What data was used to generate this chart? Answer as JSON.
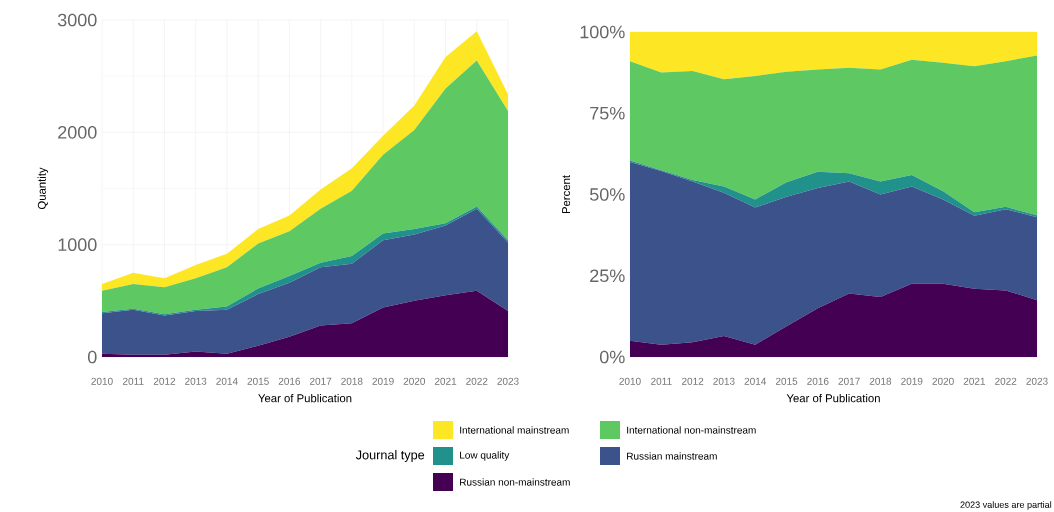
{
  "chart_data": [
    {
      "type": "area",
      "stacked": true,
      "xlabel": "Year of Publication",
      "ylabel": "Quantity",
      "legend_title": "Journal type",
      "legend": "bottom",
      "grid": true,
      "x": [
        2010,
        2011,
        2012,
        2013,
        2014,
        2015,
        2016,
        2017,
        2018,
        2019,
        2020,
        2021,
        2022,
        2023
      ],
      "xlim": [
        2010,
        2023
      ],
      "xticks": [
        2010,
        2011,
        2012,
        2013,
        2014,
        2015,
        2016,
        2017,
        2018,
        2019,
        2020,
        2021,
        2022,
        2023
      ],
      "ylim": [
        0,
        3000
      ],
      "yticks": [
        0,
        1000,
        2000,
        3000
      ],
      "series": [
        {
          "name": "Russian non-mainstream",
          "color": "#440154",
          "values": [
            30,
            20,
            20,
            50,
            30,
            100,
            180,
            280,
            300,
            440,
            500,
            550,
            590,
            410
          ]
        },
        {
          "name": "Russian mainstream",
          "color": "#3b528b",
          "values": [
            360,
            400,
            350,
            360,
            390,
            460,
            480,
            520,
            530,
            600,
            590,
            620,
            730,
            610
          ]
        },
        {
          "name": "Low quality",
          "color": "#21918c",
          "values": [
            10,
            10,
            10,
            10,
            30,
            50,
            60,
            40,
            70,
            60,
            50,
            20,
            20,
            20
          ]
        },
        {
          "name": "International non-mainstream",
          "color": "#5ec962",
          "values": [
            190,
            220,
            240,
            280,
            350,
            400,
            400,
            480,
            580,
            700,
            880,
            1200,
            1300,
            1150
          ]
        },
        {
          "name": "International mainstream",
          "color": "#fde725",
          "values": [
            60,
            100,
            80,
            120,
            120,
            130,
            140,
            170,
            200,
            170,
            220,
            280,
            260,
            150
          ]
        }
      ]
    },
    {
      "type": "area",
      "stacked": true,
      "xlabel": "Year of Publication",
      "ylabel": "Percent",
      "grid": true,
      "annotations": [
        "2023 values are partial"
      ],
      "x": [
        2010,
        2011,
        2012,
        2013,
        2014,
        2015,
        2016,
        2017,
        2018,
        2019,
        2020,
        2021,
        2022,
        2023
      ],
      "xlim": [
        2010,
        2023
      ],
      "xticks": [
        2010,
        2011,
        2012,
        2013,
        2014,
        2015,
        2016,
        2017,
        2018,
        2019,
        2020,
        2021,
        2022,
        2023
      ],
      "ylim": [
        0,
        100
      ],
      "yticks": [
        {
          "value": 0,
          "label": "0%"
        },
        {
          "value": 25,
          "label": "25%"
        },
        {
          "value": 50,
          "label": "50%"
        },
        {
          "value": 75,
          "label": "75%"
        },
        {
          "value": 100,
          "label": "100%"
        }
      ],
      "series": [
        {
          "color": "#440154",
          "values": [
            5,
            3.8,
            4.5,
            6.5,
            3.8,
            9.5,
            15,
            19.5,
            18.5,
            22.5,
            22.5,
            21,
            20.5,
            17.5
          ]
        },
        {
          "color": "#3b528b",
          "values": [
            55,
            53.4,
            49.5,
            44,
            42.2,
            39.8,
            37,
            34.5,
            31.5,
            30,
            26,
            22.5,
            25,
            25.5
          ]
        },
        {
          "color": "#21918c",
          "values": [
            0.5,
            0.3,
            0.5,
            2,
            2.5,
            4.5,
            5,
            2.5,
            4,
            3.5,
            2.5,
            1,
            0.7,
            0.6
          ]
        },
        {
          "color": "#5ec962",
          "values": [
            30.5,
            30,
            33.5,
            33,
            38,
            34,
            31.5,
            32.5,
            34.5,
            35.5,
            39.5,
            45,
            44.8,
            49.2
          ]
        },
        {
          "color": "#fde725",
          "values": [
            9,
            12.5,
            12,
            14.5,
            13.5,
            12.2,
            11.5,
            11,
            11.5,
            8.5,
            9.5,
            10.5,
            9,
            7.2
          ]
        }
      ]
    }
  ]
}
